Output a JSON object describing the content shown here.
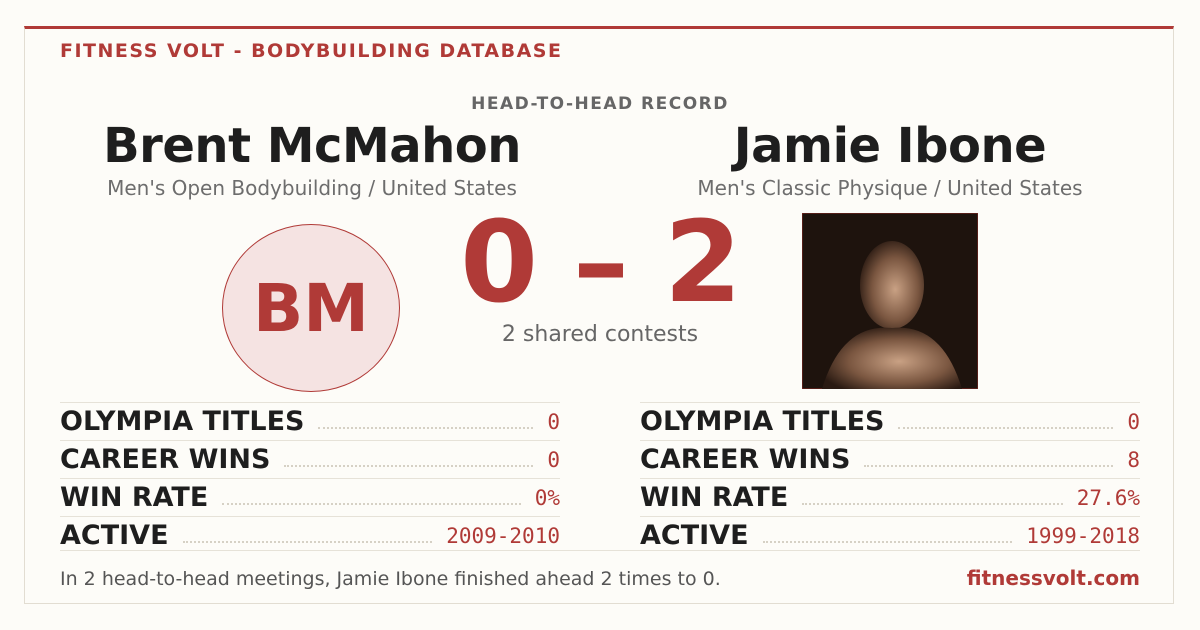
{
  "header": {
    "brand": "FITNESS VOLT - BODYBUILDING DATABASE"
  },
  "record": {
    "label": "HEAD-TO-HEAD RECORD",
    "score": "0 – 2",
    "subtitle": "2 shared contests"
  },
  "athletes": [
    {
      "name": "Brent McMahon",
      "division": "Men's Open Bodybuilding / United States",
      "initials": "BM",
      "stats": [
        {
          "label": "OLYMPIA TITLES",
          "value": "0"
        },
        {
          "label": "CAREER WINS",
          "value": "0"
        },
        {
          "label": "WIN RATE",
          "value": "0%"
        },
        {
          "label": "ACTIVE",
          "value": "2009-2010"
        }
      ]
    },
    {
      "name": "Jamie Ibone",
      "division": "Men's Classic Physique / United States",
      "stats": [
        {
          "label": "OLYMPIA TITLES",
          "value": "0"
        },
        {
          "label": "CAREER WINS",
          "value": "8"
        },
        {
          "label": "WIN RATE",
          "value": "27.6%"
        },
        {
          "label": "ACTIVE",
          "value": "1999-2018"
        }
      ]
    }
  ],
  "footer": {
    "summary": "In 2 head-to-head meetings, Jamie Ibone finished ahead 2 times to 0.",
    "site": "fitnessvolt.com"
  }
}
